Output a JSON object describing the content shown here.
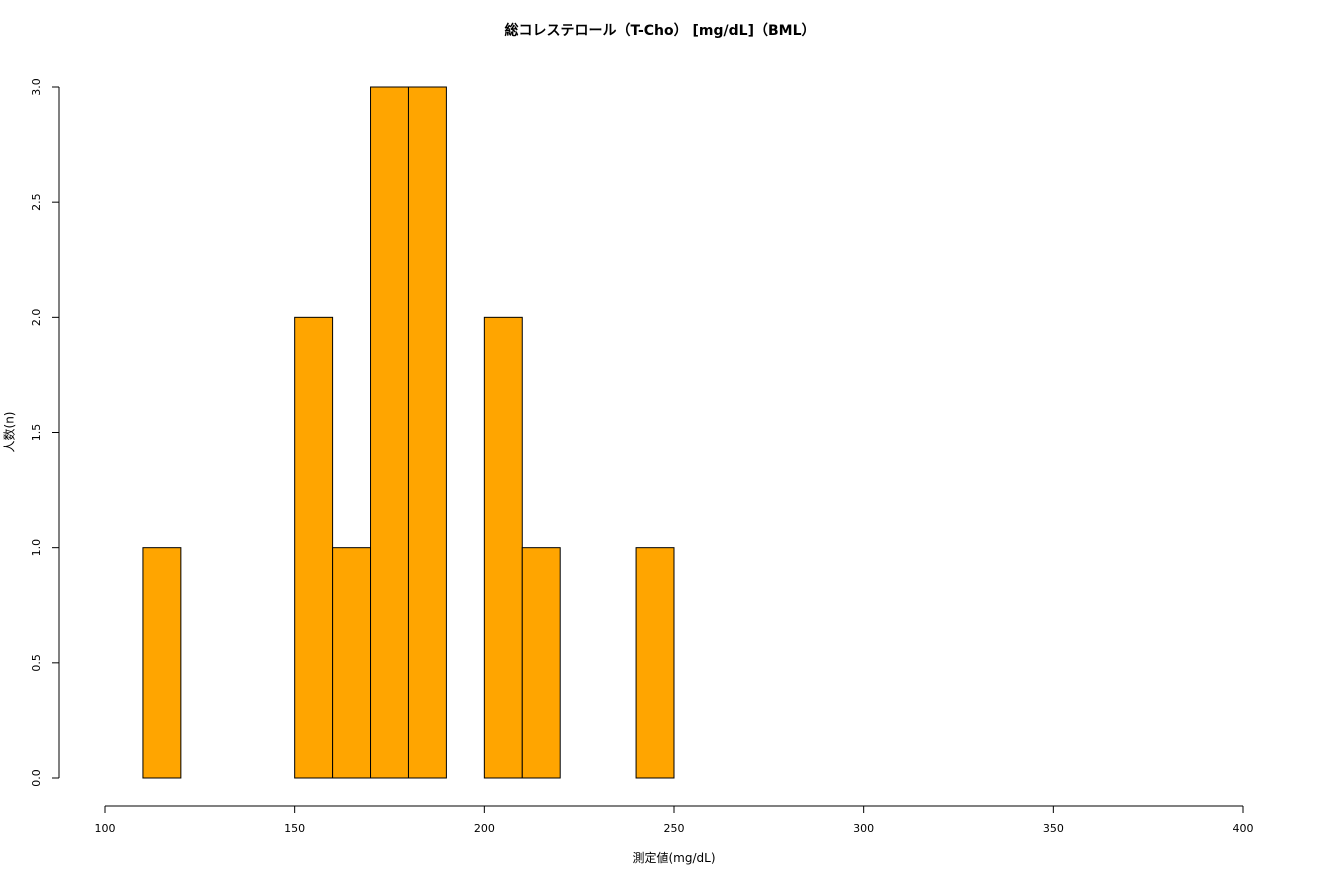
{
  "chart_data": {
    "type": "bar",
    "title": "総コレステロール（T-Cho） [mg/dL]（BML）",
    "xlabel": "測定値(mg/dL)",
    "ylabel": "人数(n)",
    "bin_width": 10,
    "bins": [
      {
        "from": 110,
        "to": 120,
        "count": 1
      },
      {
        "from": 120,
        "to": 130,
        "count": 0
      },
      {
        "from": 130,
        "to": 140,
        "count": 0
      },
      {
        "from": 140,
        "to": 150,
        "count": 0
      },
      {
        "from": 150,
        "to": 160,
        "count": 2
      },
      {
        "from": 160,
        "to": 170,
        "count": 1
      },
      {
        "from": 170,
        "to": 180,
        "count": 3
      },
      {
        "from": 180,
        "to": 190,
        "count": 3
      },
      {
        "from": 190,
        "to": 200,
        "count": 0
      },
      {
        "from": 200,
        "to": 210,
        "count": 2
      },
      {
        "from": 210,
        "to": 220,
        "count": 1
      },
      {
        "from": 220,
        "to": 230,
        "count": 0
      },
      {
        "from": 230,
        "to": 240,
        "count": 0
      },
      {
        "from": 240,
        "to": 250,
        "count": 1
      }
    ],
    "xlim": [
      100,
      400
    ],
    "ylim": [
      0,
      3
    ],
    "x_ticks": [
      "100",
      "150",
      "200",
      "250",
      "300",
      "350",
      "400"
    ],
    "y_ticks": [
      "0.0",
      "0.5",
      "1.0",
      "1.5",
      "2.0",
      "2.5",
      "3.0"
    ],
    "bar_color": "#FFA500",
    "grid": false,
    "legend": "none"
  }
}
